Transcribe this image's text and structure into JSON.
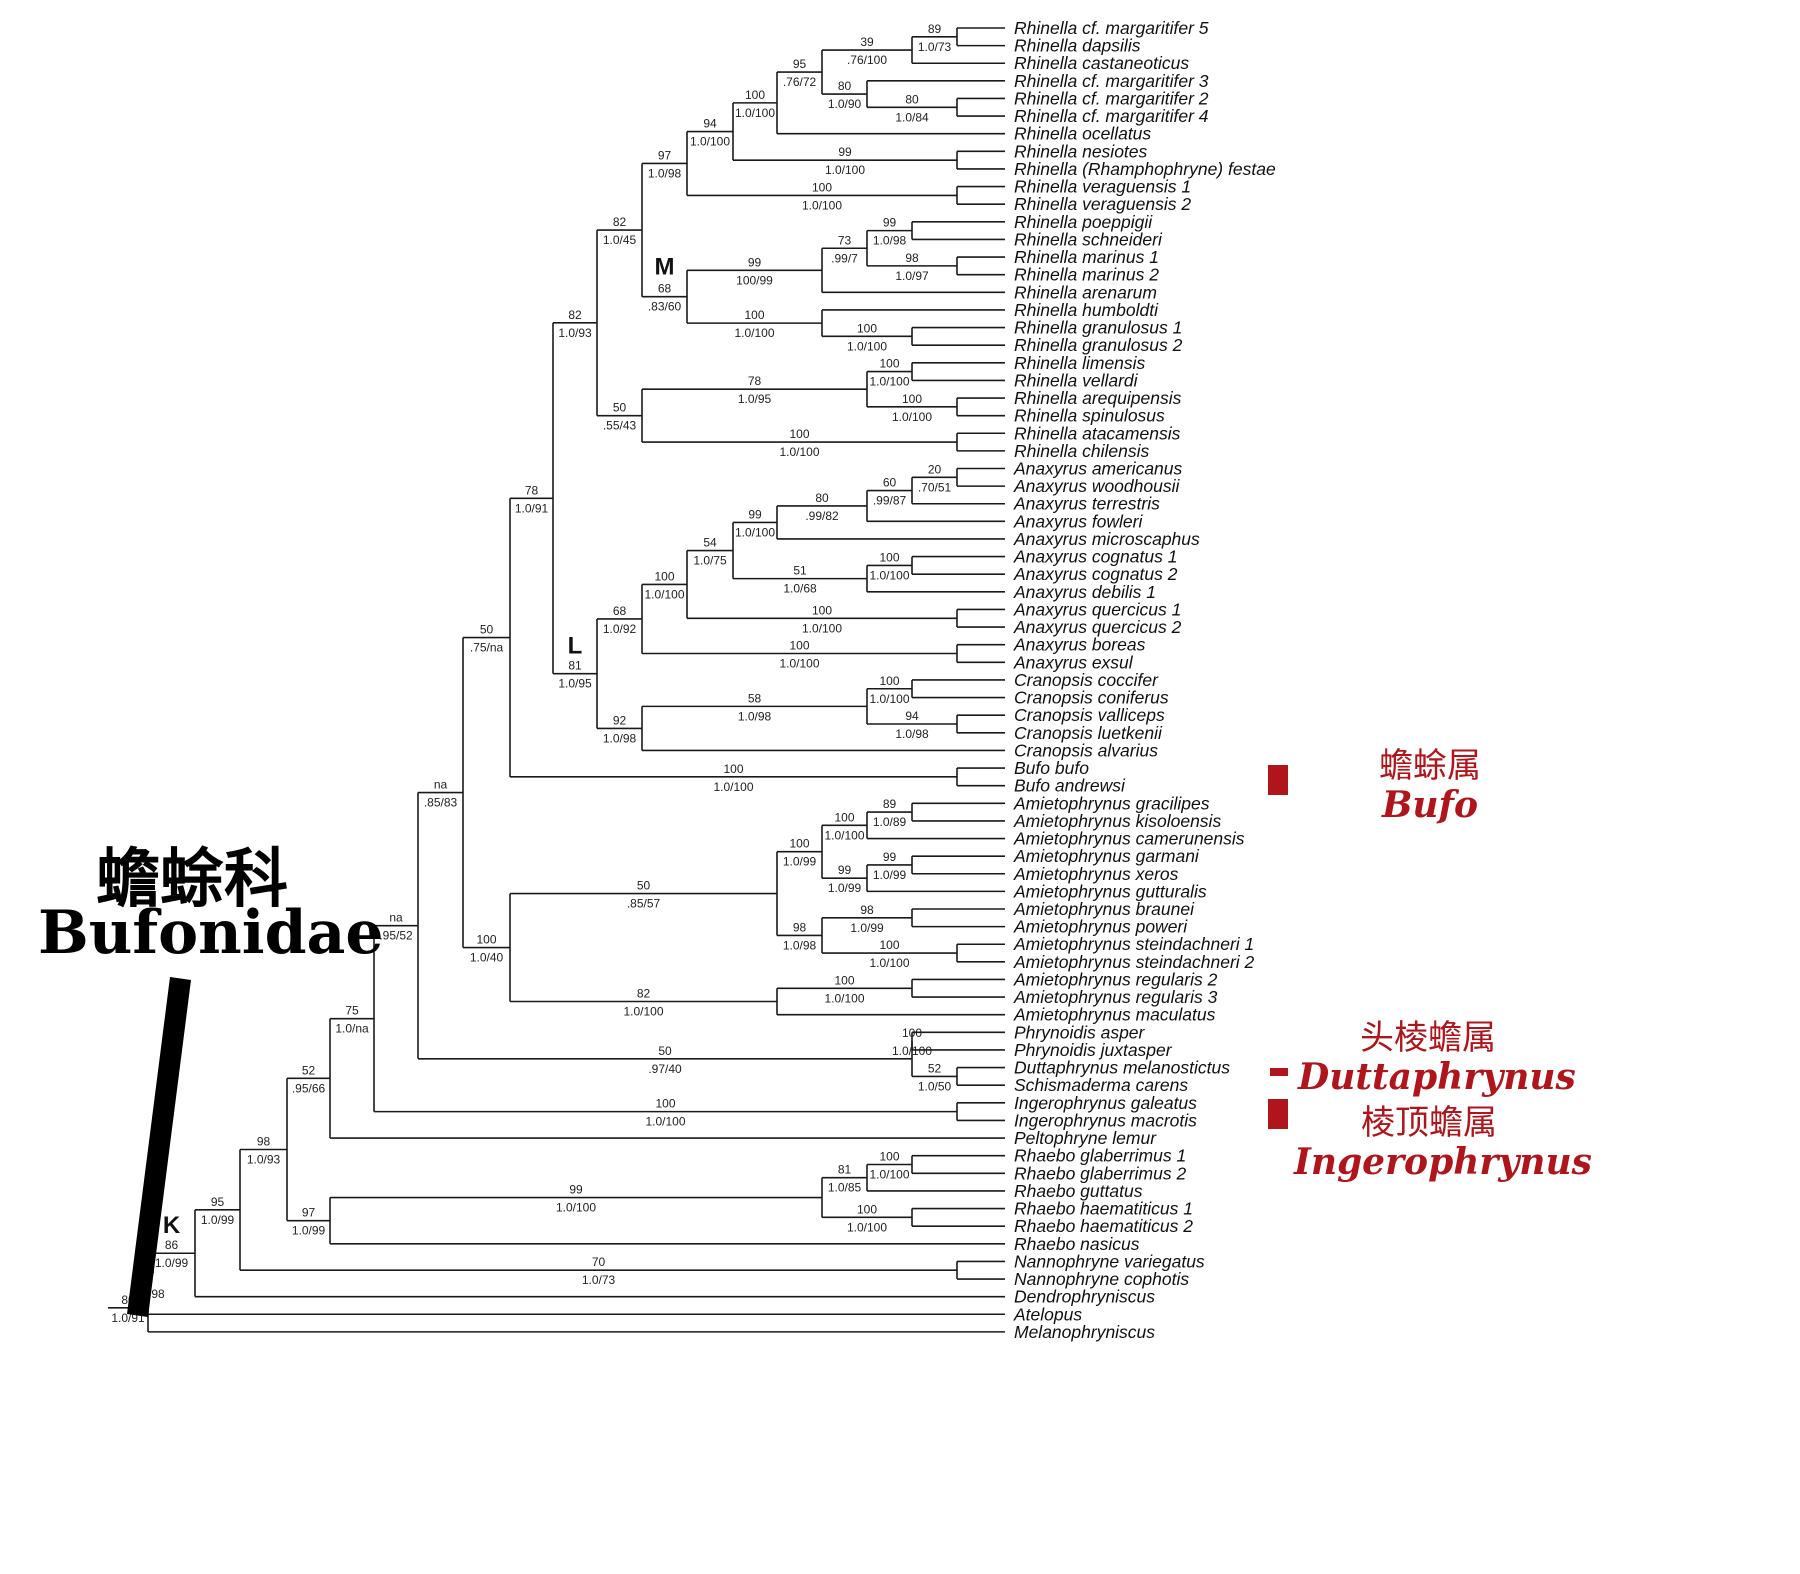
{
  "family": {
    "cn": "蟾蜍科",
    "latin": "Bufonidae"
  },
  "genus_labels": [
    {
      "cn": "蟾蜍属",
      "latin": "Bufo"
    },
    {
      "cn": "头棱蟾属",
      "latin": "Duttaphrynus"
    },
    {
      "cn": "棱顶蟾属",
      "latin": "Ingerophrynus"
    }
  ],
  "colors": {
    "branch": "#1a1a1a",
    "genus_label": "#b0151c",
    "family_bar": "#000000"
  },
  "clade_letters": [
    "K",
    "L",
    "M"
  ],
  "taxa": [
    {
      "g": "Rhinella",
      "s": "cf. margaritifer 5"
    },
    {
      "g": "Rhinella",
      "s": "dapsilis"
    },
    {
      "g": "Rhinella",
      "s": "castaneoticus"
    },
    {
      "g": "Rhinella",
      "s": "cf. margaritifer 3"
    },
    {
      "g": "Rhinella",
      "s": "cf. margaritifer 2"
    },
    {
      "g": "Rhinella",
      "s": "cf. margaritifer 4"
    },
    {
      "g": "Rhinella",
      "s": "ocellatus"
    },
    {
      "g": "Rhinella",
      "s": "nesiotes"
    },
    {
      "g": "Rhinella",
      "s": "(Rhamphophryne) festae"
    },
    {
      "g": "Rhinella",
      "s": "veraguensis 1"
    },
    {
      "g": "Rhinella",
      "s": "veraguensis 2"
    },
    {
      "g": "Rhinella",
      "s": "poeppigii"
    },
    {
      "g": "Rhinella",
      "s": "schneideri"
    },
    {
      "g": "Rhinella",
      "s": "marinus 1"
    },
    {
      "g": "Rhinella",
      "s": "marinus 2"
    },
    {
      "g": "Rhinella",
      "s": "arenarum"
    },
    {
      "g": "Rhinella",
      "s": "humboldti"
    },
    {
      "g": "Rhinella",
      "s": "granulosus 1"
    },
    {
      "g": "Rhinella",
      "s": "granulosus 2"
    },
    {
      "g": "Rhinella",
      "s": "limensis"
    },
    {
      "g": "Rhinella",
      "s": "vellardi"
    },
    {
      "g": "Rhinella",
      "s": "arequipensis"
    },
    {
      "g": "Rhinella",
      "s": "spinulosus"
    },
    {
      "g": "Rhinella",
      "s": "atacamensis"
    },
    {
      "g": "Rhinella",
      "s": "chilensis"
    },
    {
      "g": "Anaxyrus",
      "s": "americanus"
    },
    {
      "g": "Anaxyrus",
      "s": "woodhousii"
    },
    {
      "g": "Anaxyrus",
      "s": "terrestris"
    },
    {
      "g": "Anaxyrus",
      "s": "fowleri"
    },
    {
      "g": "Anaxyrus",
      "s": "microscaphus"
    },
    {
      "g": "Anaxyrus",
      "s": "cognatus 1"
    },
    {
      "g": "Anaxyrus",
      "s": "cognatus 2"
    },
    {
      "g": "Anaxyrus",
      "s": "debilis 1"
    },
    {
      "g": "Anaxyrus",
      "s": "quercicus 1"
    },
    {
      "g": "Anaxyrus",
      "s": "quercicus 2"
    },
    {
      "g": "Anaxyrus",
      "s": "boreas"
    },
    {
      "g": "Anaxyrus",
      "s": "exsul"
    },
    {
      "g": "Cranopsis",
      "s": "coccifer"
    },
    {
      "g": "Cranopsis",
      "s": "coniferus"
    },
    {
      "g": "Cranopsis",
      "s": "valliceps"
    },
    {
      "g": "Cranopsis",
      "s": "luetkenii"
    },
    {
      "g": "Cranopsis",
      "s": "alvarius"
    },
    {
      "g": "Bufo",
      "s": "bufo"
    },
    {
      "g": "Bufo",
      "s": "andrewsi"
    },
    {
      "g": "Amietophrynus",
      "s": "gracilipes"
    },
    {
      "g": "Amietophrynus",
      "s": "kisoloensis"
    },
    {
      "g": "Amietophrynus",
      "s": "camerunensis"
    },
    {
      "g": "Amietophrynus",
      "s": "garmani"
    },
    {
      "g": "Amietophrynus",
      "s": "xeros"
    },
    {
      "g": "Amietophrynus",
      "s": "gutturalis"
    },
    {
      "g": "Amietophrynus",
      "s": "braunei"
    },
    {
      "g": "Amietophrynus",
      "s": "poweri"
    },
    {
      "g": "Amietophrynus",
      "s": "steindachneri 1"
    },
    {
      "g": "Amietophrynus",
      "s": "steindachneri 2"
    },
    {
      "g": "Amietophrynus",
      "s": "regularis 2"
    },
    {
      "g": "Amietophrynus",
      "s": "regularis 3"
    },
    {
      "g": "Amietophrynus",
      "s": "maculatus"
    },
    {
      "g": "Phrynoidis",
      "s": "asper"
    },
    {
      "g": "Phrynoidis",
      "s": "juxtasper"
    },
    {
      "g": "Duttaphrynus",
      "s": "melanostictus"
    },
    {
      "g": "Schismaderma",
      "s": "carens"
    },
    {
      "g": "Ingerophrynus",
      "s": "galeatus"
    },
    {
      "g": "Ingerophrynus",
      "s": "macrotis"
    },
    {
      "g": "Peltophryne",
      "s": "lemur"
    },
    {
      "g": "Rhaebo",
      "s": "glaberrimus 1"
    },
    {
      "g": "Rhaebo",
      "s": "glaberrimus 2"
    },
    {
      "g": "Rhaebo",
      "s": "guttatus"
    },
    {
      "g": "Rhaebo",
      "s": "haematiticus 1"
    },
    {
      "g": "Rhaebo",
      "s": "haematiticus 2"
    },
    {
      "g": "Rhaebo",
      "s": "nasicus"
    },
    {
      "g": "Nannophryne",
      "s": "variegatus"
    },
    {
      "g": "Nannophryne",
      "s": "cophotis"
    },
    {
      "g": "Dendrophryniscus",
      "s": ""
    },
    {
      "g": "Atelopus",
      "s": ""
    },
    {
      "g": "Melanophryniscus",
      "s": ""
    }
  ],
  "nodes": [
    {
      "id": "A",
      "children": [
        0,
        1
      ],
      "bs": "89",
      "pp": "1.0/73"
    },
    {
      "id": "B",
      "children": [
        "A",
        2
      ],
      "bs": "39",
      "pp": ".76/100"
    },
    {
      "id": "C",
      "children": [
        4,
        5
      ],
      "bs": "80",
      "pp": "1.0/84"
    },
    {
      "id": "D",
      "children": [
        3,
        "C"
      ],
      "bs": "80",
      "pp": "1.0/90"
    },
    {
      "id": "E",
      "children": [
        "B",
        "D"
      ],
      "bs": "95",
      "pp": ".76/72"
    },
    {
      "id": "F",
      "children": [
        "E",
        6
      ],
      "bs": "100",
      "pp": "1.0/100"
    },
    {
      "id": "G",
      "children": [
        7,
        8
      ],
      "bs": "99",
      "pp": "1.0/100"
    },
    {
      "id": "H",
      "children": [
        "F",
        "G"
      ],
      "bs": "94",
      "pp": "1.0/100"
    },
    {
      "id": "I",
      "children": [
        9,
        10
      ],
      "bs": "100",
      "pp": "1.0/100"
    },
    {
      "id": "J",
      "children": [
        "H",
        "I"
      ],
      "bs": "97",
      "pp": "1.0/98"
    },
    {
      "id": "N1",
      "children": [
        11,
        12
      ],
      "bs": "99",
      "pp": "1.0/98"
    },
    {
      "id": "N2",
      "children": [
        13,
        14
      ],
      "bs": "98",
      "pp": "1.0/97"
    },
    {
      "id": "N3",
      "children": [
        "N1",
        "N2"
      ],
      "bs": "73",
      "pp": ".99/7"
    },
    {
      "id": "N4",
      "children": [
        "N3",
        15
      ],
      "bs": "99",
      "pp": "100/99"
    },
    {
      "id": "N5",
      "children": [
        17,
        18
      ],
      "bs": "100",
      "pp": "1.0/100"
    },
    {
      "id": "N6",
      "children": [
        16,
        "N5"
      ],
      "bs": "100",
      "pp": "1.0/100"
    },
    {
      "id": "M",
      "children": [
        "N4",
        "N6"
      ],
      "bs": "68",
      "pp": ".83/60",
      "clade": "M"
    },
    {
      "id": "N7",
      "children": [
        "J",
        "M"
      ],
      "bs": "82",
      "pp": "1.0/45"
    },
    {
      "id": "O1",
      "children": [
        19,
        20
      ],
      "bs": "100",
      "pp": "1.0/100"
    },
    {
      "id": "O2",
      "children": [
        21,
        22
      ],
      "bs": "100",
      "pp": "1.0/100"
    },
    {
      "id": "O3",
      "children": [
        "O1",
        "O2"
      ],
      "bs": "78",
      "pp": "1.0/95"
    },
    {
      "id": "O4",
      "children": [
        23,
        24
      ],
      "bs": "100",
      "pp": "1.0/100"
    },
    {
      "id": "O5",
      "children": [
        "O3",
        "O4"
      ],
      "bs": "50",
      "pp": ".55/43"
    },
    {
      "id": "O6",
      "children": [
        "N7",
        "O5"
      ],
      "bs": "82",
      "pp": "1.0/93"
    },
    {
      "id": "P1",
      "children": [
        25,
        26
      ],
      "bs": "20",
      "pp": ".70/51"
    },
    {
      "id": "P2",
      "children": [
        "P1",
        27
      ],
      "bs": "60",
      "pp": ".99/87"
    },
    {
      "id": "P3",
      "children": [
        "P2",
        28
      ],
      "bs": "80",
      "pp": ".99/82"
    },
    {
      "id": "P4",
      "children": [
        "P3",
        29
      ],
      "bs": "99",
      "pp": "1.0/100"
    },
    {
      "id": "P5",
      "children": [
        30,
        31
      ],
      "bs": "100",
      "pp": "1.0/100"
    },
    {
      "id": "P6",
      "children": [
        "P5",
        32
      ],
      "bs": "51",
      "pp": "1.0/68"
    },
    {
      "id": "P7",
      "children": [
        "P4",
        "P6"
      ],
      "bs": "54",
      "pp": "1.0/75"
    },
    {
      "id": "P8",
      "children": [
        33,
        34
      ],
      "bs": "100",
      "pp": "1.0/100"
    },
    {
      "id": "P9",
      "children": [
        "P7",
        "P8"
      ],
      "bs": "100",
      "pp": "1.0/100"
    },
    {
      "id": "P10",
      "children": [
        35,
        36
      ],
      "bs": "100",
      "pp": "1.0/100"
    },
    {
      "id": "P11",
      "children": [
        "P9",
        "P10"
      ],
      "bs": "68",
      "pp": "1.0/92"
    },
    {
      "id": "Q1",
      "children": [
        37,
        38
      ],
      "bs": "100",
      "pp": "1.0/100"
    },
    {
      "id": "Q2",
      "children": [
        39,
        40
      ],
      "bs": "94",
      "pp": "1.0/98"
    },
    {
      "id": "Q3",
      "children": [
        "Q1",
        "Q2"
      ],
      "bs": "58",
      "pp": "1.0/98"
    },
    {
      "id": "Q4",
      "children": [
        "Q3",
        41
      ],
      "bs": "92",
      "pp": "1.0/98"
    },
    {
      "id": "L",
      "children": [
        "P11",
        "Q4"
      ],
      "bs": "81",
      "pp": "1.0/95",
      "clade": "L"
    },
    {
      "id": "R1",
      "children": [
        "O6",
        "L"
      ],
      "bs": "78",
      "pp": "1.0/91"
    },
    {
      "id": "R2",
      "children": [
        42,
        43
      ],
      "bs": "100",
      "pp": "1.0/100"
    },
    {
      "id": "R3",
      "children": [
        "R1",
        "R2"
      ],
      "bs": "50",
      "pp": ".75/na"
    },
    {
      "id": "S1",
      "children": [
        44,
        45
      ],
      "bs": "89",
      "pp": "1.0/89"
    },
    {
      "id": "S2",
      "children": [
        "S1",
        46
      ],
      "bs": "100",
      "pp": "1.0/100"
    },
    {
      "id": "S3",
      "children": [
        47,
        48
      ],
      "bs": "99",
      "pp": "1.0/99"
    },
    {
      "id": "S4",
      "children": [
        "S3",
        49
      ],
      "bs": "99",
      "pp": "1.0/99"
    },
    {
      "id": "S5",
      "children": [
        "S2",
        "S4"
      ],
      "bs": "100",
      "pp": "1.0/99"
    },
    {
      "id": "S6",
      "children": [
        50,
        51
      ],
      "bs": "98",
      "pp": "1.0/99"
    },
    {
      "id": "S7",
      "children": [
        52,
        53
      ],
      "bs": "100",
      "pp": "1.0/100"
    },
    {
      "id": "S8",
      "children": [
        "S6",
        "S7"
      ],
      "bs": "98",
      "pp": "1.0/98"
    },
    {
      "id": "S9",
      "children": [
        "S5",
        "S8"
      ],
      "bs": "50",
      "pp": ".85/57"
    },
    {
      "id": "S10",
      "children": [
        54,
        55
      ],
      "bs": "100",
      "pp": "1.0/100"
    },
    {
      "id": "S11",
      "children": [
        "S10",
        56
      ],
      "bs": "82",
      "pp": "1.0/100"
    },
    {
      "id": "S12",
      "children": [
        "S9",
        "S11"
      ],
      "bs": "100",
      "pp": "1.0/40"
    },
    {
      "id": "T1",
      "children": [
        "R3",
        "S12"
      ],
      "bs": "na",
      "pp": ".85/83"
    },
    {
      "id": "U1",
      "children": [
        57,
        58
      ],
      "bs": "100",
      "pp": "1.0/100"
    },
    {
      "id": "U2",
      "children": [
        59,
        60
      ],
      "bs": "52",
      "pp": "1.0/50"
    },
    {
      "id": "U3",
      "children": [
        "U1",
        "U2"
      ],
      "bs": "50",
      "pp": ".97/40"
    },
    {
      "id": "T2",
      "children": [
        "T1",
        "U3"
      ],
      "bs": "na",
      "pp": ".95/52"
    },
    {
      "id": "V1",
      "children": [
        61,
        62
      ],
      "bs": "100",
      "pp": "1.0/100"
    },
    {
      "id": "T3",
      "children": [
        "T2",
        "V1"
      ],
      "bs": "75",
      "pp": "1.0/na"
    },
    {
      "id": "T4",
      "children": [
        "T3",
        63
      ],
      "bs": "52",
      "pp": ".95/66"
    },
    {
      "id": "W1",
      "children": [
        64,
        65
      ],
      "bs": "100",
      "pp": "1.0/100"
    },
    {
      "id": "W2",
      "children": [
        "W1",
        66
      ],
      "bs": "81",
      "pp": "1.0/85"
    },
    {
      "id": "W3",
      "children": [
        67,
        68
      ],
      "bs": "100",
      "pp": "1.0/100"
    },
    {
      "id": "W4",
      "children": [
        "W2",
        "W3"
      ],
      "bs": "99",
      "pp": "1.0/100"
    },
    {
      "id": "W5",
      "children": [
        "W4",
        69
      ],
      "bs": "97",
      "pp": "1.0/99"
    },
    {
      "id": "T5",
      "children": [
        "T4",
        "W5"
      ],
      "bs": "98",
      "pp": "1.0/93"
    },
    {
      "id": "X1",
      "children": [
        70,
        71
      ],
      "bs": "70",
      "pp": "1.0/73"
    },
    {
      "id": "T6",
      "children": [
        "T5",
        "X1"
      ],
      "bs": "95",
      "pp": "1.0/99"
    },
    {
      "id": "K",
      "children": [
        "T6",
        72
      ],
      "bs": "86",
      "pp": "1.0/99",
      "clade": "K"
    },
    {
      "id": "T7",
      "children": [
        "K",
        73
      ],
      "bs": "87",
      "pp": "1.0/98"
    },
    {
      "id": "ROOT",
      "children": [
        "T7",
        74
      ],
      "bs": "80",
      "pp": "1.0/91"
    }
  ]
}
